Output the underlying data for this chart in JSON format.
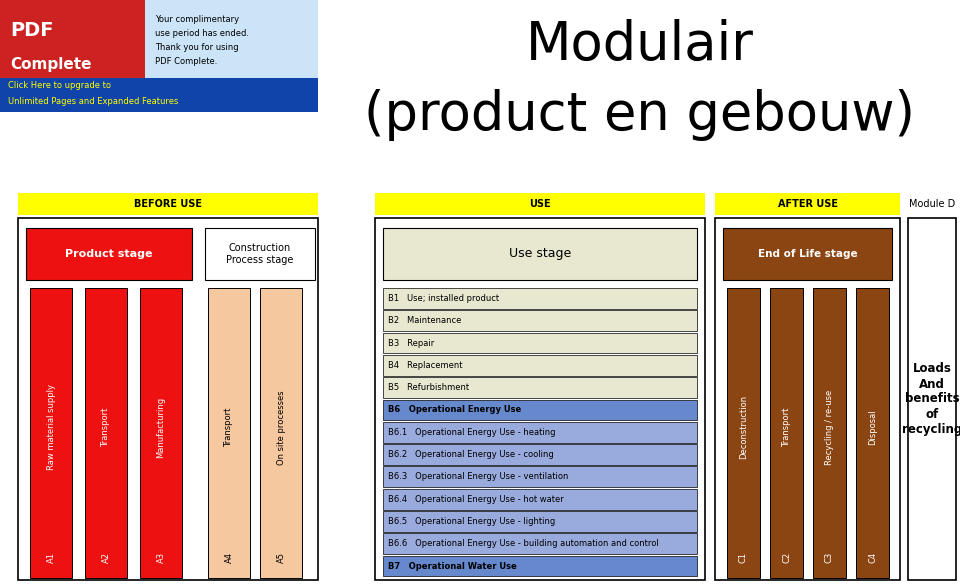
{
  "title_line1": "Modulair",
  "title_line2": "(product en gebouw)",
  "bg_color": "#ffffff",
  "header_yellow": "#ffff00",
  "red_bars": [
    {
      "id": "A1",
      "label": "Raw material supply",
      "color": "#ee1111",
      "tc": "white"
    },
    {
      "id": "A2",
      "label": "Transport",
      "color": "#ee1111",
      "tc": "white"
    },
    {
      "id": "A3",
      "label": "Manufacturing",
      "color": "#ee1111",
      "tc": "white"
    }
  ],
  "peach_bars": [
    {
      "id": "A4",
      "label": "Transport",
      "color": "#f5c8a0",
      "tc": "black"
    },
    {
      "id": "A5",
      "label": "On site processes",
      "color": "#f5c8a0",
      "tc": "black"
    }
  ],
  "brown_bars": [
    {
      "id": "C1",
      "label": "Deconstruction",
      "color": "#8b4513",
      "tc": "white"
    },
    {
      "id": "C2",
      "label": "Transport",
      "color": "#8b4513",
      "tc": "white"
    },
    {
      "id": "C3",
      "label": "Recycling / re-use",
      "color": "#8b4513",
      "tc": "white"
    },
    {
      "id": "C4",
      "label": "Disposal",
      "color": "#8b4513",
      "tc": "white"
    }
  ],
  "b_rows": [
    {
      "id": "B1",
      "label": "Use; installed product",
      "bg": "#e8e8d0",
      "bold": false
    },
    {
      "id": "B2",
      "label": "Maintenance",
      "bg": "#e8e8d0",
      "bold": false
    },
    {
      "id": "B3",
      "label": "Repair",
      "bg": "#e8e8d0",
      "bold": false
    },
    {
      "id": "B4",
      "label": "Replacement",
      "bg": "#e8e8d0",
      "bold": false
    },
    {
      "id": "B5",
      "label": "Refurbishment",
      "bg": "#e8e8d0",
      "bold": false
    },
    {
      "id": "B6",
      "label": "Operational Energy Use",
      "bg": "#6688cc",
      "bold": true
    },
    {
      "id": "B6.1",
      "label": "Operational Energy Use - heating",
      "bg": "#99aadd",
      "bold": false
    },
    {
      "id": "B6.2",
      "label": "Operational Energy Use - cooling",
      "bg": "#99aadd",
      "bold": false
    },
    {
      "id": "B6.3",
      "label": "Operational Energy Use - ventilation",
      "bg": "#99aadd",
      "bold": false
    },
    {
      "id": "B6.4",
      "label": "Operational Energy Use - hot water",
      "bg": "#99aadd",
      "bold": false
    },
    {
      "id": "B6.5",
      "label": "Operational Energy Use - lighting",
      "bg": "#99aadd",
      "bold": false
    },
    {
      "id": "B6.6",
      "label": "Operational Energy Use - building automation and control",
      "bg": "#99aadd",
      "bold": false
    },
    {
      "id": "B7",
      "label": "Operational Water Use",
      "bg": "#6688cc",
      "bold": true
    }
  ],
  "module_d_text": "Loads\nAnd\nbenefits\nof\nrecycling"
}
